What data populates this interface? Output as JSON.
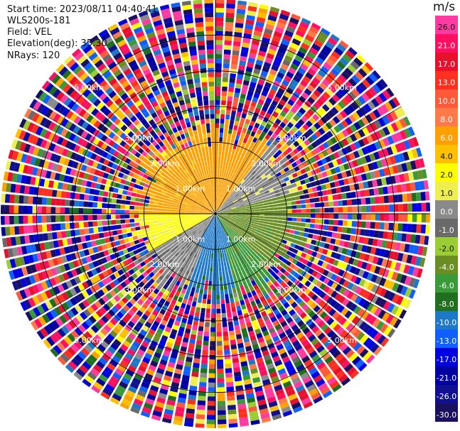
{
  "header": {
    "start_time": "Start time: 2023/08/11 04:40:41",
    "instrument": "WLS200s-181",
    "field": "Field: VEL",
    "elevation": "Elevation(deg): 35.30",
    "nrays": "NRays: 120"
  },
  "colorbar": {
    "title": "m/s",
    "ticks": [
      "26.0",
      "21.0",
      "17.0",
      "13.0",
      "10.0",
      "8.0",
      "6.0",
      "4.0",
      "2.0",
      "1.0",
      "0.0",
      "-1.0",
      "-2.0",
      "-4.0",
      "-6.0",
      "-8.0",
      "-10.0",
      "-13.0",
      "-17.0",
      "-21.0",
      "-26.0",
      "-30.0"
    ],
    "bands": [
      "#ff3aa0",
      "#ff1060",
      "#e8112d",
      "#ff3020",
      "#ff5a3a",
      "#ff7a4a",
      "#ffa000",
      "#ffc000",
      "#ffff00",
      "#eeee50",
      "#8a8a8a",
      "#6a6a6a",
      "#9acd32",
      "#6b8e23",
      "#3a9a3a",
      "#1f6f1f",
      "#1e78c8",
      "#1060ff",
      "#0000e0",
      "#0000a0",
      "#101090",
      "#1a1060"
    ]
  },
  "chart_data": {
    "type": "ppi",
    "field": "VEL",
    "units": "m/s",
    "nrays": 120,
    "elevation_deg": 35.3,
    "range_rings_km": [
      1.0,
      2.0,
      3.0,
      5.0
    ],
    "ring_labels": [
      "1.00km",
      "2.00km",
      "3.00km",
      "5.00km"
    ],
    "color_levels": [
      -30,
      -26,
      -21,
      -17,
      -13,
      -10,
      -8,
      -6,
      -4,
      -2,
      -1,
      0,
      1,
      2,
      4,
      6,
      8,
      10,
      13,
      17,
      21,
      26,
      30
    ],
    "max_range_km": 6.0,
    "coherent_range_km": 2.2,
    "sectors": [
      {
        "az_start": 270,
        "az_end": 360,
        "velocity_ms": 6.5
      },
      {
        "az_start": 0,
        "az_end": 40,
        "velocity_ms": 7.0
      },
      {
        "az_start": 40,
        "az_end": 75,
        "velocity_ms": 0.5
      },
      {
        "az_start": 75,
        "az_end": 100,
        "velocity_ms": -2.5
      },
      {
        "az_start": 100,
        "az_end": 135,
        "velocity_ms": -3.5
      },
      {
        "az_start": 135,
        "az_end": 165,
        "velocity_ms": -4.5
      },
      {
        "az_start": 165,
        "az_end": 200,
        "velocity_ms": -8.5
      },
      {
        "az_start": 200,
        "az_end": 240,
        "velocity_ms": 0.3
      },
      {
        "az_start": 240,
        "az_end": 270,
        "velocity_ms": 2.5
      }
    ]
  }
}
